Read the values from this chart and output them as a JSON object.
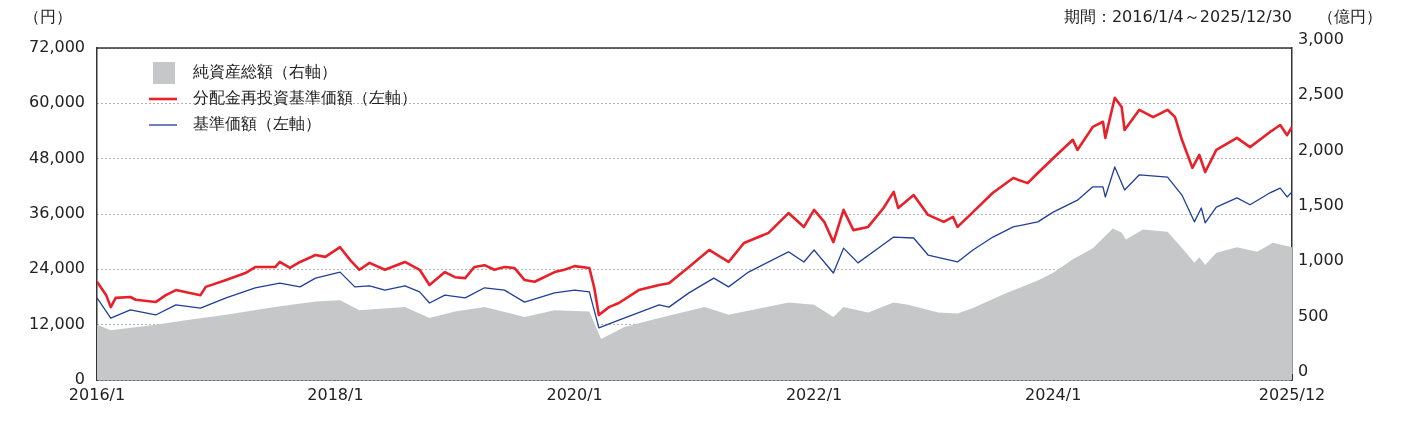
{
  "chart_data": {
    "type": "line",
    "ylabel": "（円）",
    "y2label": "（億円）",
    "annotations": [
      "期間：2016/1/4～2025/12/30"
    ],
    "xlim": [
      "2016-01-04",
      "2025-12-30"
    ],
    "xticks": [
      {
        "value": "2016-01-04",
        "label": "2016/1"
      },
      {
        "value": "2018-01",
        "label": "2018/1"
      },
      {
        "value": "2020-01",
        "label": "2020/1"
      },
      {
        "value": "2022-01",
        "label": "2022/1"
      },
      {
        "value": "2024-01",
        "label": "2024/1"
      },
      {
        "value": "2025-12-30",
        "label": "2025/12"
      }
    ],
    "ylim": [
      0,
      72000
    ],
    "yticks": [
      0,
      {
        "value": 12000,
        "label": "12,000"
      },
      {
        "value": 24000,
        "label": "24,000"
      },
      {
        "value": 36000,
        "label": "36,000"
      },
      {
        "value": 48000,
        "label": "48,000"
      },
      {
        "value": 60000,
        "label": "60,000"
      },
      {
        "value": 72000,
        "label": "72,000"
      }
    ],
    "y2lim": [
      0,
      3000
    ],
    "y2ticks": [
      0,
      500,
      {
        "value": 1000,
        "label": "1,000"
      },
      {
        "value": 1500,
        "label": "1,500"
      },
      {
        "value": 2000,
        "label": "2,000"
      },
      {
        "value": 2500,
        "label": "2,500"
      },
      {
        "value": 3000,
        "label": "3,000"
      }
    ],
    "grid": "y",
    "legend": "top left",
    "marker": "none",
    "line_style": "solid",
    "series": [
      {
        "name": "純資産総額（右軸）",
        "type": "area",
        "axis": "y2",
        "color": "#c6c7c9",
        "x": [
          "2016-01-04",
          "2016-02-15",
          "2016-07-01",
          "2016-10-01",
          "2017-02-01",
          "2017-07-01",
          "2017-11-01",
          "2018-01-15",
          "2018-03-15",
          "2018-08-01",
          "2018-10-15",
          "2019-01-01",
          "2019-04-01",
          "2019-08-01",
          "2019-11-01",
          "2020-02-15",
          "2020-03-22",
          "2020-06-01",
          "2020-09-15",
          "2021-02-01",
          "2021-04-15",
          "2021-10-15",
          "2022-01-01",
          "2022-03-01",
          "2022-04-01",
          "2022-06-15",
          "2022-09-01",
          "2022-10-15",
          "2023-01-15",
          "2023-03-15",
          "2023-05-01",
          "2023-08-15",
          "2023-11-15",
          "2024-01-01",
          "2024-03-01",
          "2024-05-01",
          "2024-07-01",
          "2024-07-28",
          "2024-08-10",
          "2024-10-01",
          "2024-12-15",
          "2025-02-01",
          "2025-03-07",
          "2025-03-22",
          "2025-04-09",
          "2025-05-13",
          "2025-07-15",
          "2025-09-15",
          "2025-11-01",
          "2025-12-30"
        ],
        "values": [
          500,
          450,
          500,
          540,
          590,
          660,
          710,
          720,
          630,
          660,
          560,
          620,
          660,
          570,
          630,
          620,
          370,
          480,
          560,
          660,
          590,
          700,
          680,
          570,
          660,
          610,
          700,
          680,
          610,
          600,
          650,
          790,
          900,
          970,
          1090,
          1190,
          1370,
          1330,
          1270,
          1360,
          1340,
          1180,
          1060,
          1110,
          1040,
          1150,
          1200,
          1160,
          1240,
          1200
        ]
      },
      {
        "name": "分配金再投資基準価額（左軸）",
        "type": "line",
        "axis": "y",
        "color": "#e8202a",
        "x": [
          "2016-01-04",
          "2016-02-01",
          "2016-02-15",
          "2016-03-01",
          "2016-04-15",
          "2016-05-01",
          "2016-07-01",
          "2016-08-01",
          "2016-09-01",
          "2016-11-15",
          "2016-12-01",
          "2017-02-01",
          "2017-04-01",
          "2017-05-01",
          "2017-07-01",
          "2017-07-15",
          "2017-08-15",
          "2017-09-15",
          "2017-11-01",
          "2017-12-01",
          "2018-01-15",
          "2018-02-15",
          "2018-03-15",
          "2018-04-15",
          "2018-06-01",
          "2018-08-01",
          "2018-09-15",
          "2018-10-15",
          "2018-12-01",
          "2019-01-01",
          "2019-02-01",
          "2019-03-01",
          "2019-04-01",
          "2019-05-01",
          "2019-06-01",
          "2019-07-01",
          "2019-08-01",
          "2019-09-01",
          "2019-11-01",
          "2019-12-01",
          "2020-01-01",
          "2020-02-15",
          "2020-03-01",
          "2020-03-15",
          "2020-04-15",
          "2020-05-15",
          "2020-07-15",
          "2020-09-15",
          "2020-10-15",
          "2020-12-15",
          "2021-02-15",
          "2021-04-15",
          "2021-06-01",
          "2021-08-15",
          "2021-10-15",
          "2021-12-01",
          "2022-01-01",
          "2022-02-01",
          "2022-03-01",
          "2022-04-01",
          "2022-05-01",
          "2022-06-15",
          "2022-08-01",
          "2022-09-01",
          "2022-09-15",
          "2022-11-01",
          "2022-12-15",
          "2023-02-01",
          "2023-03-01",
          "2023-03-15",
          "2023-05-01",
          "2023-07-01",
          "2023-09-01",
          "2023-10-15",
          "2023-11-15",
          "2024-01-01",
          "2024-03-01",
          "2024-03-15",
          "2024-05-01",
          "2024-06-01",
          "2024-06-08",
          "2024-07-07",
          "2024-07-28",
          "2024-08-06",
          "2024-09-20",
          "2024-11-01",
          "2024-12-15",
          "2025-01-07",
          "2025-01-28",
          "2025-03-01",
          "2025-03-22",
          "2025-04-09",
          "2025-05-13",
          "2025-07-15",
          "2025-08-24",
          "2025-10-24",
          "2025-11-24",
          "2025-12-15",
          "2025-12-30"
        ],
        "values": [
          21300,
          18400,
          15800,
          17800,
          18000,
          17400,
          16900,
          18400,
          19500,
          18400,
          20200,
          21700,
          23200,
          24500,
          24500,
          25600,
          24300,
          25600,
          27100,
          26700,
          28800,
          26000,
          23900,
          25400,
          23900,
          25600,
          23900,
          20600,
          23400,
          22300,
          22100,
          24500,
          24900,
          23900,
          24500,
          24300,
          21700,
          21300,
          23400,
          23900,
          24700,
          24300,
          20000,
          14100,
          15800,
          16700,
          19500,
          20600,
          21000,
          24500,
          28200,
          25600,
          29700,
          31900,
          36200,
          33200,
          36900,
          34300,
          29900,
          36900,
          32500,
          33200,
          37300,
          40800,
          37300,
          40100,
          35800,
          34300,
          35400,
          33200,
          36400,
          40600,
          43800,
          42700,
          44900,
          48100,
          52100,
          49900,
          54900,
          56000,
          52500,
          61200,
          59200,
          54200,
          58600,
          57000,
          58600,
          57000,
          52100,
          46000,
          48800,
          45100,
          49900,
          52500,
          50500,
          53800,
          55300,
          53100,
          54900
        ]
      },
      {
        "name": "基準価額（左軸）",
        "type": "line",
        "axis": "y",
        "color": "#1f3f99",
        "x": [
          "2016-01-04",
          "2016-02-15",
          "2016-04-15",
          "2016-07-01",
          "2016-09-01",
          "2016-11-15",
          "2017-02-01",
          "2017-05-01",
          "2017-07-15",
          "2017-09-15",
          "2017-11-01",
          "2018-01-15",
          "2018-03-01",
          "2018-04-15",
          "2018-06-01",
          "2018-08-01",
          "2018-09-15",
          "2018-10-15",
          "2018-12-01",
          "2019-02-01",
          "2019-04-01",
          "2019-06-01",
          "2019-08-01",
          "2019-11-01",
          "2020-01-01",
          "2020-02-15",
          "2020-03-15",
          "2020-05-15",
          "2020-09-15",
          "2020-10-15",
          "2020-12-15",
          "2021-03-01",
          "2021-04-15",
          "2021-06-15",
          "2021-10-15",
          "2021-12-01",
          "2022-01-01",
          "2022-03-01",
          "2022-04-01",
          "2022-05-15",
          "2022-09-01",
          "2022-11-01",
          "2022-12-15",
          "2023-03-15",
          "2023-05-01",
          "2023-07-01",
          "2023-09-01",
          "2023-11-15",
          "2024-01-01",
          "2024-03-15",
          "2024-05-01",
          "2024-06-01",
          "2024-06-08",
          "2024-07-07",
          "2024-08-06",
          "2024-09-20",
          "2024-12-15",
          "2025-01-28",
          "2025-03-07",
          "2025-03-28",
          "2025-04-09",
          "2025-05-13",
          "2025-07-15",
          "2025-08-24",
          "2025-10-24",
          "2025-11-24",
          "2025-12-15",
          "2025-12-30"
        ],
        "values": [
          17800,
          13400,
          15200,
          14100,
          16300,
          15600,
          17800,
          20000,
          21000,
          20200,
          22100,
          23400,
          20200,
          20400,
          19500,
          20400,
          19100,
          16700,
          18400,
          17800,
          20000,
          19500,
          16900,
          18900,
          19500,
          19100,
          11300,
          13000,
          16300,
          15800,
          18900,
          22100,
          20200,
          23400,
          27800,
          25600,
          28200,
          23200,
          28600,
          25400,
          31000,
          30800,
          27100,
          25600,
          28200,
          31000,
          33200,
          34300,
          36400,
          39000,
          41900,
          41900,
          39700,
          46200,
          41200,
          44500,
          44000,
          40100,
          34300,
          37300,
          34100,
          37500,
          39500,
          38000,
          40600,
          41600,
          39700,
          40800
        ]
      }
    ]
  }
}
